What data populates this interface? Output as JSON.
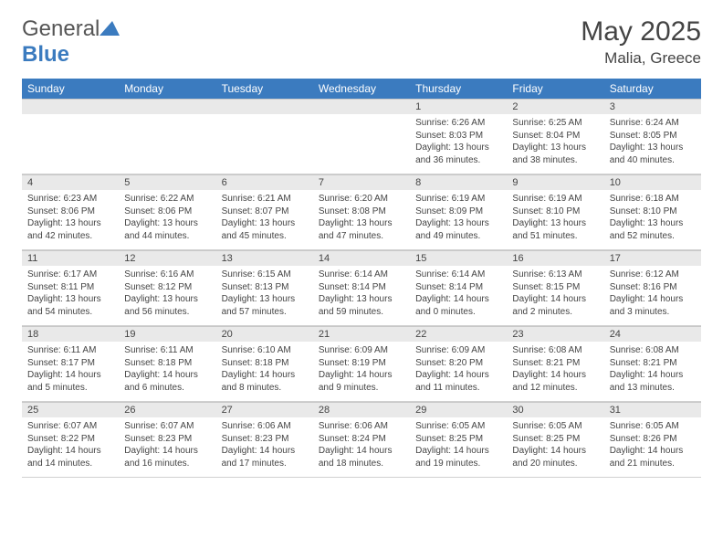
{
  "brand": {
    "name_a": "General",
    "name_b": "Blue"
  },
  "title": {
    "month_year": "May 2025",
    "location": "Malia, Greece"
  },
  "colors": {
    "header_bg": "#3b7bbf",
    "header_text": "#ffffff",
    "day_bar_bg": "#e9e9e9",
    "body_text": "#444444",
    "page_bg": "#ffffff",
    "border": "#d0d0d0"
  },
  "weekdays": [
    "Sunday",
    "Monday",
    "Tuesday",
    "Wednesday",
    "Thursday",
    "Friday",
    "Saturday"
  ],
  "weeks": [
    [
      {
        "day": "",
        "sunrise": "",
        "sunset": "",
        "daylight": ""
      },
      {
        "day": "",
        "sunrise": "",
        "sunset": "",
        "daylight": ""
      },
      {
        "day": "",
        "sunrise": "",
        "sunset": "",
        "daylight": ""
      },
      {
        "day": "",
        "sunrise": "",
        "sunset": "",
        "daylight": ""
      },
      {
        "day": "1",
        "sunrise": "Sunrise: 6:26 AM",
        "sunset": "Sunset: 8:03 PM",
        "daylight": "Daylight: 13 hours and 36 minutes."
      },
      {
        "day": "2",
        "sunrise": "Sunrise: 6:25 AM",
        "sunset": "Sunset: 8:04 PM",
        "daylight": "Daylight: 13 hours and 38 minutes."
      },
      {
        "day": "3",
        "sunrise": "Sunrise: 6:24 AM",
        "sunset": "Sunset: 8:05 PM",
        "daylight": "Daylight: 13 hours and 40 minutes."
      }
    ],
    [
      {
        "day": "4",
        "sunrise": "Sunrise: 6:23 AM",
        "sunset": "Sunset: 8:06 PM",
        "daylight": "Daylight: 13 hours and 42 minutes."
      },
      {
        "day": "5",
        "sunrise": "Sunrise: 6:22 AM",
        "sunset": "Sunset: 8:06 PM",
        "daylight": "Daylight: 13 hours and 44 minutes."
      },
      {
        "day": "6",
        "sunrise": "Sunrise: 6:21 AM",
        "sunset": "Sunset: 8:07 PM",
        "daylight": "Daylight: 13 hours and 45 minutes."
      },
      {
        "day": "7",
        "sunrise": "Sunrise: 6:20 AM",
        "sunset": "Sunset: 8:08 PM",
        "daylight": "Daylight: 13 hours and 47 minutes."
      },
      {
        "day": "8",
        "sunrise": "Sunrise: 6:19 AM",
        "sunset": "Sunset: 8:09 PM",
        "daylight": "Daylight: 13 hours and 49 minutes."
      },
      {
        "day": "9",
        "sunrise": "Sunrise: 6:19 AM",
        "sunset": "Sunset: 8:10 PM",
        "daylight": "Daylight: 13 hours and 51 minutes."
      },
      {
        "day": "10",
        "sunrise": "Sunrise: 6:18 AM",
        "sunset": "Sunset: 8:10 PM",
        "daylight": "Daylight: 13 hours and 52 minutes."
      }
    ],
    [
      {
        "day": "11",
        "sunrise": "Sunrise: 6:17 AM",
        "sunset": "Sunset: 8:11 PM",
        "daylight": "Daylight: 13 hours and 54 minutes."
      },
      {
        "day": "12",
        "sunrise": "Sunrise: 6:16 AM",
        "sunset": "Sunset: 8:12 PM",
        "daylight": "Daylight: 13 hours and 56 minutes."
      },
      {
        "day": "13",
        "sunrise": "Sunrise: 6:15 AM",
        "sunset": "Sunset: 8:13 PM",
        "daylight": "Daylight: 13 hours and 57 minutes."
      },
      {
        "day": "14",
        "sunrise": "Sunrise: 6:14 AM",
        "sunset": "Sunset: 8:14 PM",
        "daylight": "Daylight: 13 hours and 59 minutes."
      },
      {
        "day": "15",
        "sunrise": "Sunrise: 6:14 AM",
        "sunset": "Sunset: 8:14 PM",
        "daylight": "Daylight: 14 hours and 0 minutes."
      },
      {
        "day": "16",
        "sunrise": "Sunrise: 6:13 AM",
        "sunset": "Sunset: 8:15 PM",
        "daylight": "Daylight: 14 hours and 2 minutes."
      },
      {
        "day": "17",
        "sunrise": "Sunrise: 6:12 AM",
        "sunset": "Sunset: 8:16 PM",
        "daylight": "Daylight: 14 hours and 3 minutes."
      }
    ],
    [
      {
        "day": "18",
        "sunrise": "Sunrise: 6:11 AM",
        "sunset": "Sunset: 8:17 PM",
        "daylight": "Daylight: 14 hours and 5 minutes."
      },
      {
        "day": "19",
        "sunrise": "Sunrise: 6:11 AM",
        "sunset": "Sunset: 8:18 PM",
        "daylight": "Daylight: 14 hours and 6 minutes."
      },
      {
        "day": "20",
        "sunrise": "Sunrise: 6:10 AM",
        "sunset": "Sunset: 8:18 PM",
        "daylight": "Daylight: 14 hours and 8 minutes."
      },
      {
        "day": "21",
        "sunrise": "Sunrise: 6:09 AM",
        "sunset": "Sunset: 8:19 PM",
        "daylight": "Daylight: 14 hours and 9 minutes."
      },
      {
        "day": "22",
        "sunrise": "Sunrise: 6:09 AM",
        "sunset": "Sunset: 8:20 PM",
        "daylight": "Daylight: 14 hours and 11 minutes."
      },
      {
        "day": "23",
        "sunrise": "Sunrise: 6:08 AM",
        "sunset": "Sunset: 8:21 PM",
        "daylight": "Daylight: 14 hours and 12 minutes."
      },
      {
        "day": "24",
        "sunrise": "Sunrise: 6:08 AM",
        "sunset": "Sunset: 8:21 PM",
        "daylight": "Daylight: 14 hours and 13 minutes."
      }
    ],
    [
      {
        "day": "25",
        "sunrise": "Sunrise: 6:07 AM",
        "sunset": "Sunset: 8:22 PM",
        "daylight": "Daylight: 14 hours and 14 minutes."
      },
      {
        "day": "26",
        "sunrise": "Sunrise: 6:07 AM",
        "sunset": "Sunset: 8:23 PM",
        "daylight": "Daylight: 14 hours and 16 minutes."
      },
      {
        "day": "27",
        "sunrise": "Sunrise: 6:06 AM",
        "sunset": "Sunset: 8:23 PM",
        "daylight": "Daylight: 14 hours and 17 minutes."
      },
      {
        "day": "28",
        "sunrise": "Sunrise: 6:06 AM",
        "sunset": "Sunset: 8:24 PM",
        "daylight": "Daylight: 14 hours and 18 minutes."
      },
      {
        "day": "29",
        "sunrise": "Sunrise: 6:05 AM",
        "sunset": "Sunset: 8:25 PM",
        "daylight": "Daylight: 14 hours and 19 minutes."
      },
      {
        "day": "30",
        "sunrise": "Sunrise: 6:05 AM",
        "sunset": "Sunset: 8:25 PM",
        "daylight": "Daylight: 14 hours and 20 minutes."
      },
      {
        "day": "31",
        "sunrise": "Sunrise: 6:05 AM",
        "sunset": "Sunset: 8:26 PM",
        "daylight": "Daylight: 14 hours and 21 minutes."
      }
    ]
  ]
}
